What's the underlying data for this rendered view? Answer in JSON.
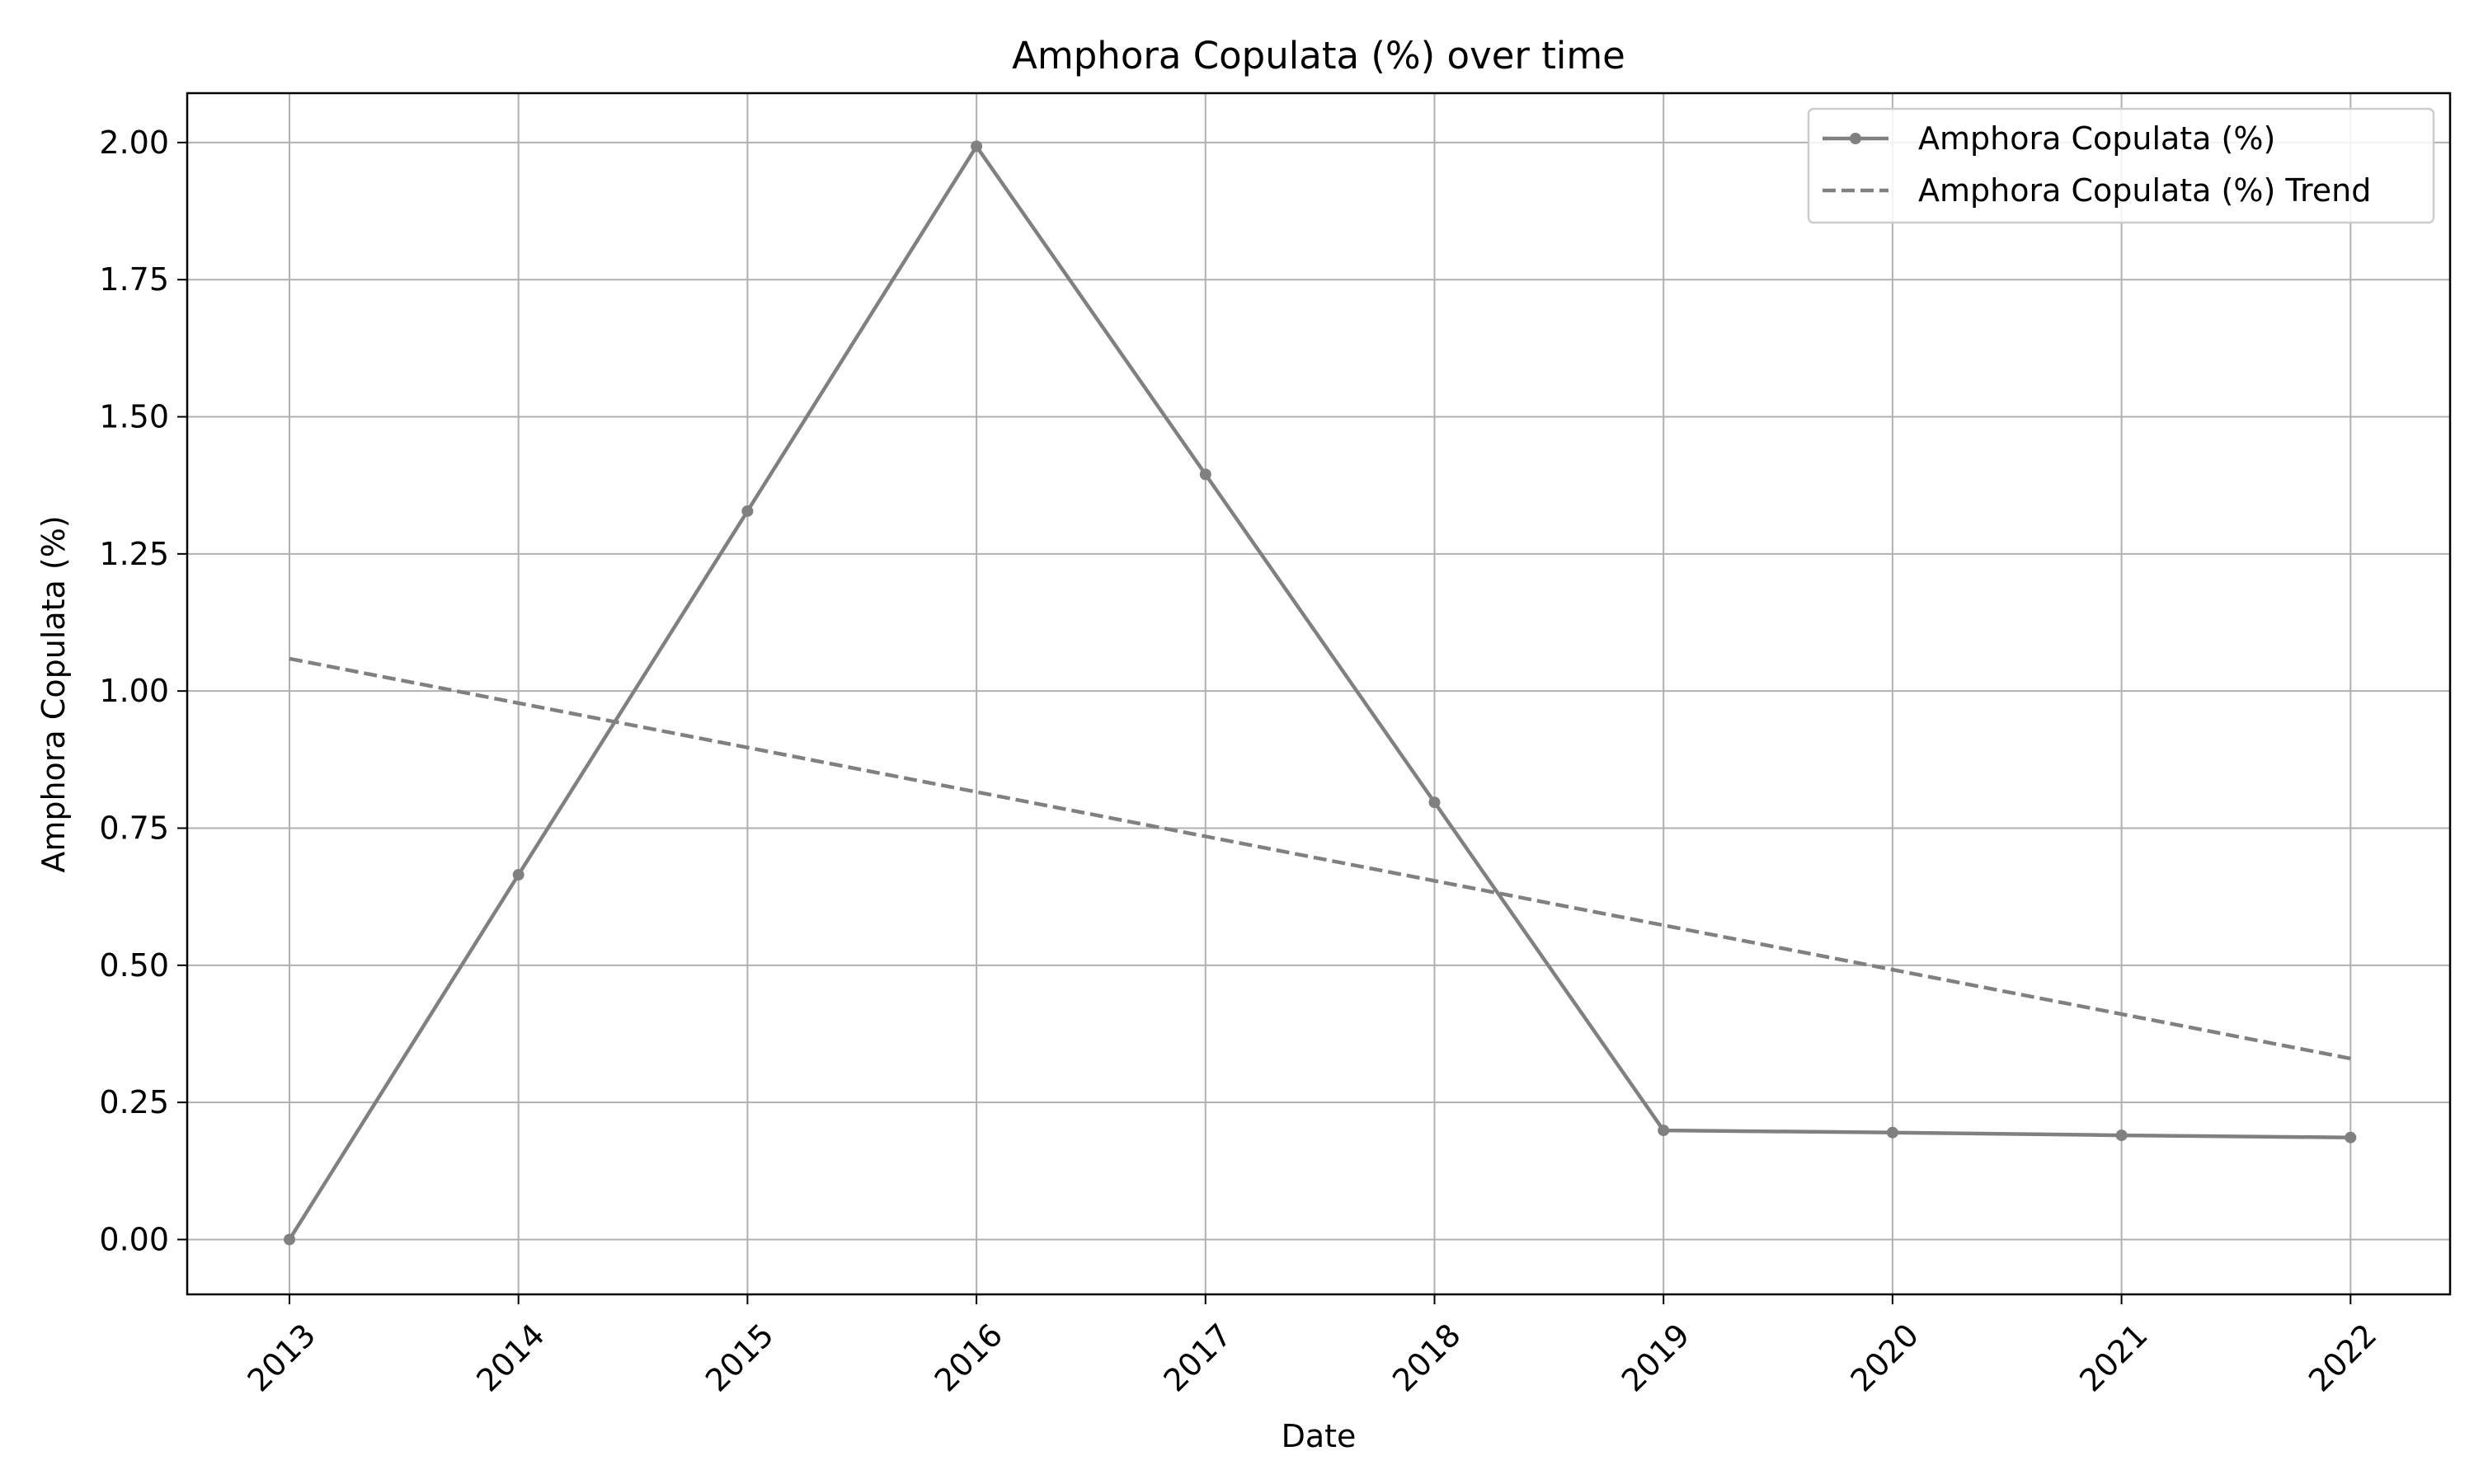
{
  "chart_data": {
    "type": "line",
    "title": "Amphora Copulata (%) over time",
    "xlabel": "Date",
    "ylabel": "Amphora Copulata (%)",
    "x": [
      "2013",
      "2014",
      "2015",
      "2016",
      "2017",
      "2018",
      "2019",
      "2020",
      "2021",
      "2022"
    ],
    "y_ticks": [
      "0.00",
      "0.25",
      "0.50",
      "0.75",
      "1.00",
      "1.25",
      "1.50",
      "1.75",
      "2.00"
    ],
    "ylim": [
      -0.1,
      2.09
    ],
    "grid": true,
    "legend_position": "top-right",
    "series": [
      {
        "name": "Amphora Copulata (%)",
        "style": "solid-with-markers",
        "color": "#808080",
        "values": [
          0.0,
          0.665,
          1.328,
          1.993,
          1.395,
          0.797,
          0.199,
          0.195,
          0.19,
          0.186
        ]
      },
      {
        "name": "Amphora Copulata (%) Trend",
        "style": "dashed",
        "color": "#808080",
        "values": [
          1.059,
          0.978,
          0.897,
          0.816,
          0.735,
          0.654,
          0.573,
          0.492,
          0.411,
          0.33
        ]
      }
    ]
  }
}
